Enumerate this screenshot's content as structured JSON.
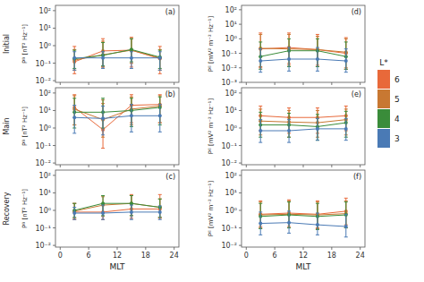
{
  "chart_data": [
    {
      "type": "line",
      "title": "(a)",
      "ylabel": "Pᴮ [nT² Hz⁻¹]",
      "log": "y",
      "marker": "circle",
      "tick_labels": "y",
      "x": [
        3,
        9,
        15,
        21
      ],
      "xlim": [
        -1,
        25
      ],
      "xticks": [
        0,
        6,
        12,
        18,
        24
      ],
      "ylim": [
        0.008,
        200
      ],
      "yticks": [
        {
          "value": 0.01,
          "label": "10⁻²"
        },
        {
          "value": 0.1,
          "label": "10⁻¹"
        },
        {
          "value": 1,
          "label": "10⁰"
        },
        {
          "value": 10,
          "label": "10¹"
        },
        {
          "value": 100,
          "label": "10²"
        }
      ],
      "series": [
        {
          "name": "6",
          "color": "#E8693A",
          "values": [
            0.12,
            0.5,
            0.55,
            0.18
          ],
          "low": [
            0.025,
            0.06,
            0.06,
            0.025
          ],
          "high": [
            0.9,
            2.5,
            3.0,
            0.9
          ]
        },
        {
          "name": "5",
          "color": "#C87832",
          "values": [
            0.15,
            0.3,
            0.55,
            0.2
          ],
          "low": [
            0.04,
            0.06,
            0.1,
            0.04
          ],
          "high": [
            0.6,
            1.8,
            2.5,
            0.6
          ]
        },
        {
          "name": "4",
          "color": "#3A8C3A",
          "values": [
            0.18,
            0.28,
            0.6,
            0.22
          ],
          "low": [
            0.05,
            0.07,
            0.12,
            0.05
          ],
          "high": [
            0.55,
            1.5,
            2.5,
            0.55
          ]
        },
        {
          "name": "3",
          "color": "#4A7AB5",
          "values": [
            0.2,
            0.2,
            0.2,
            0.2
          ],
          "low": [
            0.04,
            0.05,
            0.05,
            0.04
          ],
          "high": [
            0.45,
            0.45,
            0.45,
            0.45
          ]
        }
      ]
    },
    {
      "type": "line",
      "title": "(b)",
      "ylabel": "Pᴮ [nT² Hz⁻¹]",
      "log": "y",
      "marker": "circle",
      "tick_labels": "y",
      "x": [
        3,
        9,
        15,
        21
      ],
      "xlim": [
        -1,
        25
      ],
      "xticks": [
        0,
        6,
        12,
        18,
        24
      ],
      "ylim": [
        0.008,
        200
      ],
      "yticks": [
        {
          "value": 0.01,
          "label": "10⁻²"
        },
        {
          "value": 0.1,
          "label": "10⁻¹"
        },
        {
          "value": 1,
          "label": "10⁰"
        },
        {
          "value": 10,
          "label": "10¹"
        },
        {
          "value": 100,
          "label": "10²"
        }
      ],
      "series": [
        {
          "name": "6",
          "color": "#E8693A",
          "values": [
            15,
            0.8,
            20,
            22
          ],
          "low": [
            1.5,
            0.07,
            2.0,
            2.0
          ],
          "high": [
            80,
            25,
            80,
            80
          ]
        },
        {
          "name": "5",
          "color": "#C87832",
          "values": [
            12,
            3.0,
            12,
            18
          ],
          "low": [
            1.5,
            0.3,
            1.5,
            2.0
          ],
          "high": [
            70,
            40,
            60,
            70
          ]
        },
        {
          "name": "4",
          "color": "#3A8C3A",
          "values": [
            8,
            8,
            10,
            15
          ],
          "low": [
            1.0,
            1.0,
            1.2,
            1.5
          ],
          "high": [
            50,
            50,
            50,
            60
          ]
        },
        {
          "name": "3",
          "color": "#4A7AB5",
          "values": [
            4,
            3.5,
            5,
            5
          ],
          "low": [
            0.5,
            0.4,
            0.6,
            0.6
          ],
          "high": [
            20,
            18,
            22,
            22
          ]
        }
      ]
    },
    {
      "type": "line",
      "title": "(c)",
      "ylabel": "Pᴮ [nT² Hz⁻¹]",
      "xlabel": "MLT",
      "log": "y",
      "marker": "circle",
      "x": [
        3,
        9,
        15,
        21
      ],
      "xlim": [
        -1,
        25
      ],
      "xticks": [
        0,
        6,
        12,
        18,
        24
      ],
      "ylim": [
        0.008,
        200
      ],
      "yticks": [
        {
          "value": 0.01,
          "label": "10⁻²"
        },
        {
          "value": 0.1,
          "label": "10⁻¹"
        },
        {
          "value": 1,
          "label": "10⁰"
        },
        {
          "value": 10,
          "label": "10¹"
        },
        {
          "value": 100,
          "label": "10²"
        }
      ],
      "series": [
        {
          "name": "6",
          "color": "#E8693A",
          "values": [
            0.8,
            0.8,
            1.2,
            1.2
          ],
          "low": [
            0.3,
            0.3,
            0.35,
            0.35
          ],
          "high": [
            2.5,
            2.5,
            8.0,
            8.0
          ]
        },
        {
          "name": "5",
          "color": "#C87832",
          "values": [
            0.9,
            2.0,
            2.5,
            1.5
          ],
          "low": [
            0.35,
            0.45,
            0.5,
            0.4
          ],
          "high": [
            2.5,
            6.0,
            7.0,
            4.5
          ]
        },
        {
          "name": "4",
          "color": "#3A8C3A",
          "values": [
            1.0,
            2.5,
            2.5,
            1.5
          ],
          "low": [
            0.4,
            0.5,
            0.5,
            0.4
          ],
          "high": [
            2.5,
            7.0,
            7.0,
            4.5
          ]
        },
        {
          "name": "3",
          "color": "#4A7AB5",
          "values": [
            0.7,
            0.7,
            0.8,
            0.8
          ],
          "low": [
            0.3,
            0.3,
            0.3,
            0.3
          ],
          "high": [
            1.5,
            2.0,
            2.0,
            1.8
          ]
        }
      ]
    },
    {
      "type": "line",
      "title": "(d)",
      "ylabel": "Pᴱ [mV² m⁻² Hz⁻¹]",
      "log": "y",
      "marker": "circle",
      "tick_labels": "y",
      "x": [
        3,
        9,
        15,
        21
      ],
      "xlim": [
        -1,
        25
      ],
      "xticks": [
        0,
        6,
        12,
        18,
        24
      ],
      "ylim": [
        0.001,
        200
      ],
      "yticks": [
        {
          "value": 0.001,
          "label": "10⁻³"
        },
        {
          "value": 0.01,
          "label": "10⁻²"
        },
        {
          "value": 0.1,
          "label": "10⁻¹"
        },
        {
          "value": 1,
          "label": "10⁰"
        },
        {
          "value": 10,
          "label": "10¹"
        },
        {
          "value": 100,
          "label": "10²"
        }
      ],
      "series": [
        {
          "name": "6",
          "color": "#E8693A",
          "values": [
            0.2,
            0.25,
            0.18,
            0.1
          ],
          "low": [
            0.01,
            0.02,
            0.015,
            0.008
          ],
          "high": [
            2.5,
            2.5,
            2.0,
            1.2
          ]
        },
        {
          "name": "5",
          "color": "#C87832",
          "values": [
            0.22,
            0.2,
            0.18,
            0.12
          ],
          "low": [
            0.012,
            0.015,
            0.012,
            0.01
          ],
          "high": [
            2.0,
            2.0,
            1.5,
            1.0
          ]
        },
        {
          "name": "4",
          "color": "#3A8C3A",
          "values": [
            0.06,
            0.15,
            0.15,
            0.06
          ],
          "low": [
            0.008,
            0.012,
            0.012,
            0.008
          ],
          "high": [
            0.6,
            1.0,
            1.0,
            0.6
          ]
        },
        {
          "name": "3",
          "color": "#4A7AB5",
          "values": [
            0.03,
            0.04,
            0.04,
            0.03
          ],
          "low": [
            0.005,
            0.006,
            0.006,
            0.005
          ],
          "high": [
            0.2,
            0.25,
            0.25,
            0.2
          ]
        }
      ]
    },
    {
      "type": "line",
      "title": "(e)",
      "ylabel": "Pᴱ [mV² m⁻² Hz⁻¹]",
      "log": "y",
      "marker": "circle",
      "tick_labels": "y",
      "x": [
        3,
        9,
        15,
        21
      ],
      "xlim": [
        -1,
        25
      ],
      "xticks": [
        0,
        6,
        12,
        18,
        24
      ],
      "ylim": [
        0.008,
        200
      ],
      "yticks": [
        {
          "value": 0.01,
          "label": "10⁻²"
        },
        {
          "value": 0.1,
          "label": "10⁻¹"
        },
        {
          "value": 1,
          "label": "10⁰"
        },
        {
          "value": 10,
          "label": "10¹"
        },
        {
          "value": 100,
          "label": "10²"
        }
      ],
      "series": [
        {
          "name": "6",
          "color": "#E8693A",
          "values": [
            5.0,
            4.0,
            4.0,
            5.0
          ],
          "low": [
            0.7,
            0.5,
            0.5,
            0.7
          ],
          "high": [
            18,
            14,
            14,
            18
          ]
        },
        {
          "name": "5",
          "color": "#C87832",
          "values": [
            2.5,
            2.2,
            2.0,
            3.0
          ],
          "low": [
            0.4,
            0.3,
            0.3,
            0.4
          ],
          "high": [
            12,
            10,
            10,
            12
          ]
        },
        {
          "name": "4",
          "color": "#3A8C3A",
          "values": [
            1.5,
            1.5,
            1.2,
            2.0
          ],
          "low": [
            0.3,
            0.3,
            0.2,
            0.3
          ],
          "high": [
            8,
            7,
            6,
            9
          ]
        },
        {
          "name": "3",
          "color": "#4A7AB5",
          "values": [
            0.7,
            0.7,
            0.9,
            0.9
          ],
          "low": [
            0.15,
            0.15,
            0.2,
            0.2
          ],
          "high": [
            3.0,
            3.0,
            3.5,
            3.5
          ]
        }
      ]
    },
    {
      "type": "line",
      "title": "(f)",
      "ylabel": "Pᴱ [mV² m⁻² Hz⁻¹]",
      "xlabel": "MLT",
      "log": "y",
      "marker": "circle",
      "x": [
        3,
        9,
        15,
        21
      ],
      "xlim": [
        -1,
        25
      ],
      "xticks": [
        0,
        6,
        12,
        18,
        24
      ],
      "ylim": [
        0.008,
        200
      ],
      "yticks": [
        {
          "value": 0.01,
          "label": "10⁻²"
        },
        {
          "value": 0.1,
          "label": "10⁻¹"
        },
        {
          "value": 1,
          "label": "10⁰"
        },
        {
          "value": 10,
          "label": "10¹"
        },
        {
          "value": 100,
          "label": "10²"
        }
      ],
      "series": [
        {
          "name": "6",
          "color": "#E8693A",
          "values": [
            0.6,
            0.7,
            0.6,
            0.9
          ],
          "low": [
            0.12,
            0.12,
            0.1,
            0.15
          ],
          "high": [
            3.5,
            4.0,
            3.5,
            5.0
          ]
        },
        {
          "name": "5",
          "color": "#C87832",
          "values": [
            0.55,
            0.6,
            0.55,
            0.65
          ],
          "low": [
            0.1,
            0.1,
            0.09,
            0.1
          ],
          "high": [
            3.0,
            3.5,
            3.0,
            3.5
          ]
        },
        {
          "name": "4",
          "color": "#3A8C3A",
          "values": [
            0.45,
            0.55,
            0.45,
            0.55
          ],
          "low": [
            0.09,
            0.1,
            0.08,
            0.1
          ],
          "high": [
            2.5,
            3.0,
            2.5,
            3.0
          ]
        },
        {
          "name": "3",
          "color": "#4A7AB5",
          "values": [
            0.18,
            0.2,
            0.15,
            0.12
          ],
          "low": [
            0.04,
            0.05,
            0.04,
            0.03
          ],
          "high": [
            0.8,
            0.9,
            0.7,
            0.6
          ]
        }
      ]
    }
  ],
  "row_labels": [
    "Initial",
    "Main",
    "Recovery"
  ],
  "legend_title": "L*"
}
